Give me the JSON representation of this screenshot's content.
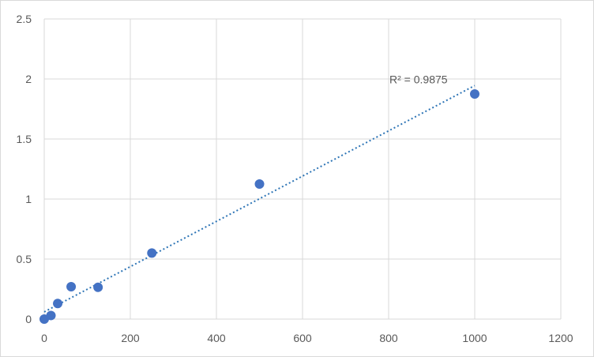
{
  "chart_data": {
    "type": "scatter",
    "title": "",
    "xlabel": "",
    "ylabel": "",
    "xlim": [
      0,
      1200
    ],
    "ylim": [
      0,
      2.5
    ],
    "x_ticks": [
      0,
      200,
      400,
      600,
      800,
      1000,
      1200
    ],
    "y_ticks": [
      0,
      0.5,
      1,
      1.5,
      2,
      2.5
    ],
    "x_tick_labels": [
      "0",
      "200",
      "400",
      "600",
      "800",
      "1000",
      "1200"
    ],
    "y_tick_labels": [
      "0",
      "0.5",
      "1",
      "1.5",
      "2",
      "2.5"
    ],
    "grid": true,
    "legend": "none",
    "series": [
      {
        "x": [
          0,
          15.625,
          31.25,
          62.5,
          125,
          250,
          500,
          1000
        ],
        "y": [
          0.0,
          0.03,
          0.13,
          0.27,
          0.265,
          0.55,
          1.125,
          1.875
        ],
        "color": "#4472c4"
      }
    ],
    "trendline": {
      "type": "linear",
      "x": [
        0,
        1000
      ],
      "y": [
        0.06,
        1.945
      ],
      "color": "#2e75b6",
      "annotation": "R² = 0.9875"
    }
  }
}
